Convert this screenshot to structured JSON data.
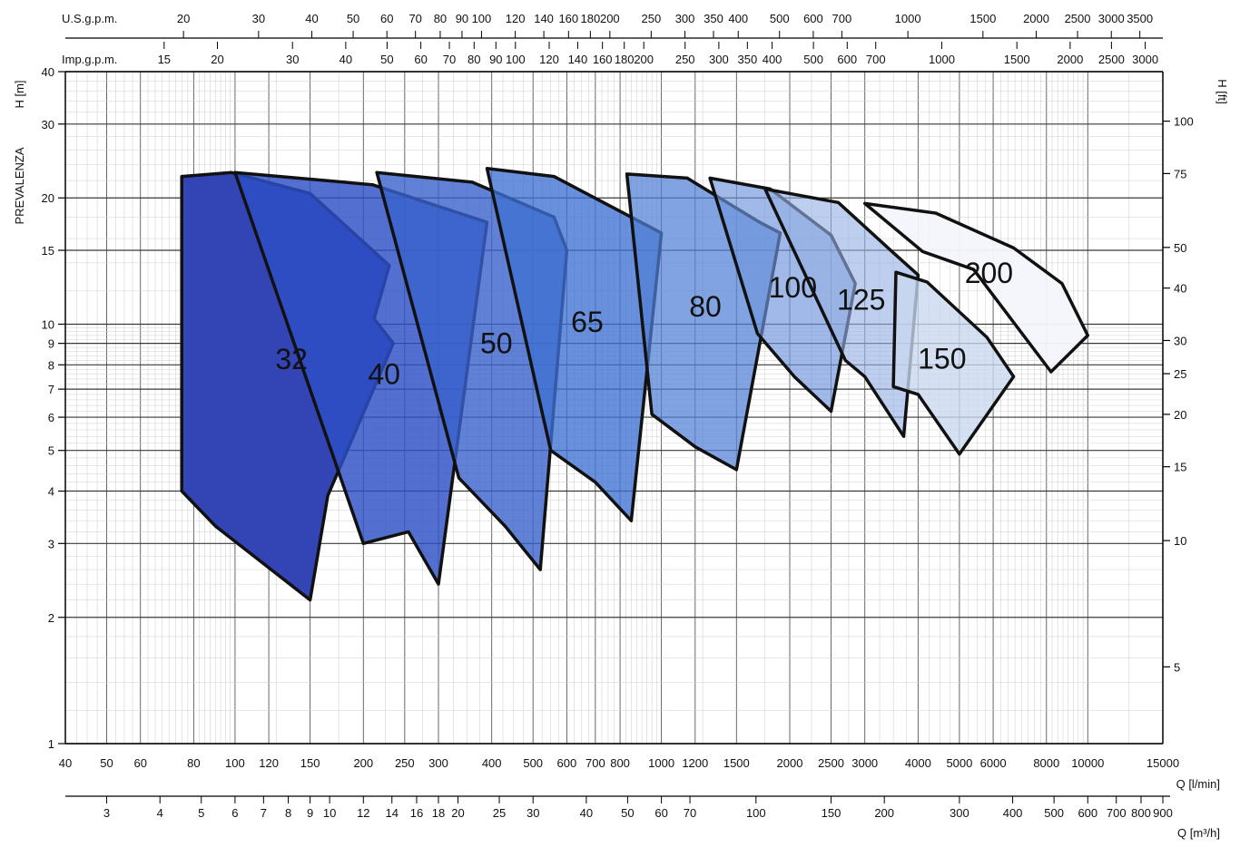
{
  "chart_data": {
    "type": "area",
    "title": "",
    "y_axis_left": {
      "label": "H [m]",
      "side_label": "PREVALENZA",
      "scale": "log",
      "range": [
        1,
        40
      ],
      "ticks": [
        1,
        2,
        3,
        4,
        5,
        6,
        7,
        8,
        9,
        10,
        15,
        20,
        30,
        40
      ]
    },
    "y_axis_right": {
      "label": "H [ft]",
      "scale": "log",
      "ticks": [
        5,
        10,
        15,
        20,
        25,
        30,
        40,
        50,
        75,
        100
      ]
    },
    "x_axis_primary": {
      "label": "Q [l/min]",
      "scale": "log",
      "range": [
        40,
        15000
      ],
      "ticks": [
        "40",
        "50",
        "60",
        "80",
        "100",
        "120",
        "150",
        "200",
        "250",
        "300",
        "400",
        "500",
        "600",
        "700",
        "800",
        "1000",
        "1200",
        "1500",
        "2000",
        "2500",
        "3000",
        "4000",
        "5000",
        "6000",
        "8000",
        "10000",
        "15000"
      ]
    },
    "x_axis_m3h": {
      "label": "Q [m³/h]",
      "ticks": [
        "3",
        "4",
        "5",
        "6",
        "7",
        "8",
        "9",
        "10",
        "12",
        "14",
        "16",
        "18",
        "20",
        "25",
        "30",
        "40",
        "50",
        "60",
        "70",
        "100",
        "150",
        "200",
        "300",
        "400",
        "500",
        "600",
        "700",
        "800",
        "900"
      ]
    },
    "x_axis_usgpm": {
      "label": "U.S.g.p.m.",
      "ticks": [
        "20",
        "30",
        "40",
        "50",
        "60",
        "70",
        "80",
        "90",
        "100",
        "120",
        "140",
        "160",
        "180",
        "200",
        "250",
        "300",
        "350",
        "400",
        "500",
        "600",
        "700",
        "1000",
        "1500",
        "2000",
        "2500",
        "3000",
        "3500"
      ]
    },
    "x_axis_impgpm": {
      "label": "Imp.g.p.m.",
      "ticks": [
        "15",
        "20",
        "30",
        "40",
        "50",
        "60",
        "70",
        "80",
        "90",
        "100",
        "120",
        "140",
        "160",
        "180",
        "200",
        "250",
        "300",
        "350",
        "400",
        "500",
        "600",
        "700",
        "1000",
        "1500",
        "2000",
        "2500",
        "3000"
      ]
    },
    "grid": true,
    "series": [
      {
        "name": "32",
        "color": "#3345b5",
        "opacity": 1.0,
        "polygon_q_h": [
          [
            75,
            22.5
          ],
          [
            98,
            23
          ],
          [
            150,
            20.5
          ],
          [
            230,
            13.8
          ],
          [
            212,
            10.3
          ],
          [
            235,
            9
          ],
          [
            165,
            3.9
          ],
          [
            150,
            2.2
          ],
          [
            90,
            3.3
          ],
          [
            75,
            4
          ]
        ]
      },
      {
        "name": "40",
        "color": "#2d4fc4",
        "opacity": 0.82,
        "polygon_q_h": [
          [
            100,
            23
          ],
          [
            210,
            21.5
          ],
          [
            390,
            17.5
          ],
          [
            300,
            2.4
          ],
          [
            255,
            3.2
          ],
          [
            200,
            3
          ]
        ]
      },
      {
        "name": "50",
        "color": "#3a62cc",
        "opacity": 0.8,
        "polygon_q_h": [
          [
            215,
            23
          ],
          [
            360,
            21.8
          ],
          [
            560,
            18
          ],
          [
            600,
            15
          ],
          [
            520,
            2.6
          ],
          [
            430,
            3.3
          ],
          [
            335,
            4.3
          ]
        ]
      },
      {
        "name": "65",
        "color": "#3f71d2",
        "opacity": 0.78,
        "polygon_q_h": [
          [
            390,
            23.5
          ],
          [
            560,
            22.5
          ],
          [
            850,
            18
          ],
          [
            1000,
            16.5
          ],
          [
            850,
            3.4
          ],
          [
            700,
            4.2
          ],
          [
            550,
            5
          ]
        ]
      },
      {
        "name": "80",
        "color": "#5280d6",
        "opacity": 0.72,
        "polygon_q_h": [
          [
            830,
            22.8
          ],
          [
            1150,
            22.3
          ],
          [
            1700,
            17.5
          ],
          [
            1900,
            16.5
          ],
          [
            1500,
            4.5
          ],
          [
            1200,
            5.1
          ],
          [
            950,
            6.1
          ]
        ]
      },
      {
        "name": "100",
        "color": "#6f95dc",
        "opacity": 0.66,
        "polygon_q_h": [
          [
            1300,
            22.3
          ],
          [
            1800,
            21
          ],
          [
            2500,
            16.3
          ],
          [
            2850,
            12.5
          ],
          [
            2500,
            6.2
          ],
          [
            2050,
            7.5
          ],
          [
            1680,
            9.5
          ]
        ]
      },
      {
        "name": "125",
        "color": "#94b0e3",
        "opacity": 0.62,
        "polygon_q_h": [
          [
            1750,
            21
          ],
          [
            2600,
            19.5
          ],
          [
            3500,
            14.8
          ],
          [
            4000,
            13.1
          ],
          [
            3700,
            5.4
          ],
          [
            3000,
            7.5
          ],
          [
            2700,
            8.2
          ]
        ]
      },
      {
        "name": "150",
        "color": "#c9d8f0",
        "opacity": 0.78,
        "polygon_q_h": [
          [
            3550,
            13.3
          ],
          [
            4200,
            12.6
          ],
          [
            5800,
            9.3
          ],
          [
            6700,
            7.5
          ],
          [
            5000,
            4.9
          ],
          [
            4000,
            6.8
          ],
          [
            3500,
            7.1
          ]
        ]
      },
      {
        "name": "200",
        "color": "#f3f6fc",
        "opacity": 0.95,
        "polygon_q_h": [
          [
            3000,
            19.4
          ],
          [
            4400,
            18.4
          ],
          [
            6700,
            15.2
          ],
          [
            8700,
            12.5
          ],
          [
            10000,
            9.4
          ],
          [
            8200,
            7.7
          ],
          [
            5400,
            13.5
          ],
          [
            4100,
            14.9
          ]
        ]
      }
    ]
  }
}
